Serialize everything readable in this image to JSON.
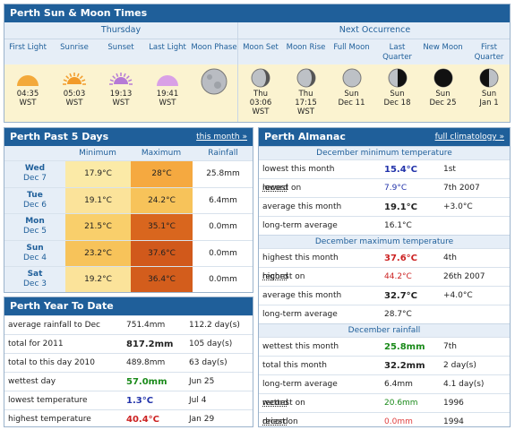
{
  "sunmoon": {
    "location": "Perth",
    "title": "Sun & Moon Times",
    "group_thursday": "Thursday",
    "group_next": "Next Occurrence",
    "cols": [
      {
        "label": "First Light",
        "l1": "04:35",
        "l2": "WST",
        "l3": "",
        "icon": "first-light-icon"
      },
      {
        "label": "Sunrise",
        "l1": "05:03",
        "l2": "WST",
        "l3": "",
        "icon": "sunrise-icon"
      },
      {
        "label": "Sunset",
        "l1": "19:13",
        "l2": "WST",
        "l3": "",
        "icon": "sunset-icon"
      },
      {
        "label": "Last Light",
        "l1": "19:41",
        "l2": "WST",
        "l3": "",
        "icon": "last-light-icon"
      },
      {
        "label": "Moon Phase",
        "l1": "",
        "l2": "",
        "l3": "",
        "icon": "moon-phase-icon"
      },
      {
        "label": "Moon Set",
        "l1": "Thu",
        "l2": "03:06",
        "l3": "WST",
        "icon": "moon-set-icon"
      },
      {
        "label": "Moon Rise",
        "l1": "Thu",
        "l2": "17:15",
        "l3": "WST",
        "icon": "moon-rise-icon"
      },
      {
        "label": "Full Moon",
        "l1": "Sun",
        "l2": "Dec 11",
        "l3": "",
        "icon": "full-moon-icon"
      },
      {
        "label": "Last Quarter",
        "l1": "Sun",
        "l2": "Dec 18",
        "l3": "",
        "icon": "last-quarter-icon"
      },
      {
        "label": "New Moon",
        "l1": "Sun",
        "l2": "Dec 25",
        "l3": "",
        "icon": "new-moon-icon"
      },
      {
        "label": "First Quarter",
        "l1": "Sun",
        "l2": "Jan 1",
        "l3": "",
        "icon": "first-quarter-icon"
      }
    ]
  },
  "past": {
    "location": "Perth",
    "title": "Past 5 Days",
    "link": "this month »",
    "h_min": "Minimum",
    "h_max": "Maximum",
    "h_rain": "Rainfall",
    "rows": [
      {
        "day": "Wed",
        "date": "Dec 7",
        "min": "17.9°C",
        "max": "28°C",
        "rain": "25.8mm"
      },
      {
        "day": "Tue",
        "date": "Dec 6",
        "min": "19.1°C",
        "max": "24.2°C",
        "rain": "6.4mm"
      },
      {
        "day": "Mon",
        "date": "Dec 5",
        "min": "21.5°C",
        "max": "35.1°C",
        "rain": "0.0mm"
      },
      {
        "day": "Sun",
        "date": "Dec 4",
        "min": "23.2°C",
        "max": "37.6°C",
        "rain": "0.0mm"
      },
      {
        "day": "Sat",
        "date": "Dec 3",
        "min": "19.2°C",
        "max": "36.4°C",
        "rain": "0.0mm"
      }
    ],
    "min_colors": [
      "#fbeaa7",
      "#fbe39a",
      "#f9cf6b",
      "#f7c35a",
      "#fbe39a"
    ],
    "max_colors": [
      "#f5a940",
      "#f7c35a",
      "#d9661e",
      "#d1591b",
      "#d35d1c"
    ]
  },
  "ytd": {
    "location": "Perth",
    "title": "Year To Date",
    "rows": [
      {
        "label": "average rainfall to Dec",
        "v1": "751.4mm",
        "v2": "112.2 day(s)"
      },
      {
        "label": "total for 2011",
        "v1": "817.2mm",
        "v2": "105 day(s)"
      },
      {
        "label": "total to this day 2010",
        "v1": "489.8mm",
        "v2": "63 day(s)"
      },
      {
        "label": "wettest day",
        "v1": "57.0mm",
        "v2": "Jun 25"
      },
      {
        "label": "lowest temperature",
        "v1": "1.3°C",
        "v2": "Jul 4"
      },
      {
        "label": "highest temperature",
        "v1": "40.4°C",
        "v2": "Jan 29"
      }
    ]
  },
  "alm": {
    "location": "Perth",
    "title": "Almanac",
    "link": "full climatology »",
    "sec_min": "December minimum temperature",
    "min_rows": [
      {
        "a": "lowest this month",
        "b": "",
        "v": "15.4°C",
        "d": "1st"
      },
      {
        "a": "lowest on ",
        "b": "record",
        "v": "7.9°C",
        "d": "7th 2007"
      },
      {
        "a": "average this month",
        "b": "",
        "v": "19.1°C",
        "d": "+3.0°C"
      },
      {
        "a": "long-term average",
        "b": "",
        "v": "16.1°C",
        "d": ""
      }
    ],
    "sec_max": "December maximum temperature",
    "max_rows": [
      {
        "a": "highest this month",
        "b": "",
        "v": "37.6°C",
        "d": "4th"
      },
      {
        "a": "highest on ",
        "b": "record",
        "v": "44.2°C",
        "d": "26th 2007"
      },
      {
        "a": "average this month",
        "b": "",
        "v": "32.7°C",
        "d": "+4.0°C"
      },
      {
        "a": "long-term average",
        "b": "",
        "v": "28.7°C",
        "d": ""
      }
    ],
    "sec_rain": "December rainfall",
    "rain_rows": [
      {
        "a": "wettest this month",
        "b": "",
        "v": "25.8mm",
        "d": "7th"
      },
      {
        "a": "total this month",
        "b": "",
        "v": "32.2mm",
        "d": "2 day(s)"
      },
      {
        "a": "long-term average",
        "b": "",
        "v": "6.4mm",
        "d": "4.1 day(s)"
      },
      {
        "a": "wettest on ",
        "b": "record",
        "v": "20.6mm",
        "d": "1996"
      },
      {
        "a": "driest on ",
        "b": "record",
        "v": "0.0mm",
        "d": "1994"
      }
    ]
  }
}
